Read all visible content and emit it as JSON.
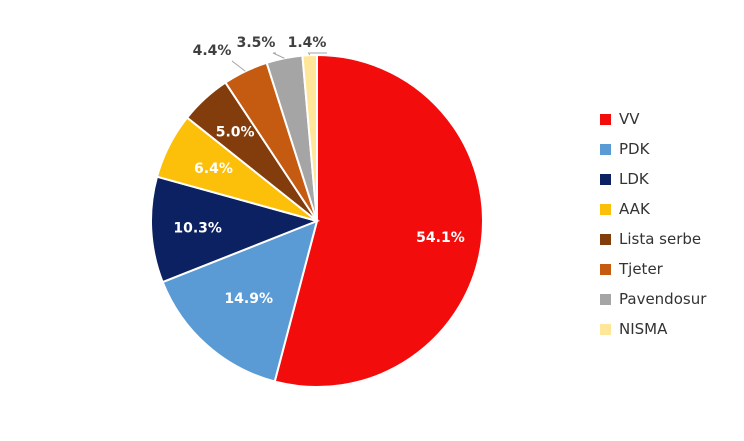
{
  "chart_data": {
    "type": "pie",
    "categories": [
      "VV",
      "PDK",
      "LDK",
      "AAK",
      "Lista serbe",
      "Tjeter",
      "Pavendosur",
      "NISMA"
    ],
    "values": [
      54.1,
      14.9,
      10.3,
      6.4,
      5.0,
      4.4,
      3.5,
      1.4
    ],
    "labels": [
      "54.1%",
      "14.9%",
      "10.3%",
      "6.4%",
      "5.0%",
      "4.4%",
      "3.5%",
      "1.4%"
    ],
    "colors": [
      "#f20c0c",
      "#5b9bd5",
      "#0b2161",
      "#fcc00b",
      "#833c0c",
      "#c55a11",
      "#a5a5a5",
      "#ffe699"
    ],
    "label_colors": [
      "#ffffff",
      "#ffffff",
      "#ffffff",
      "#ffffff",
      "#ffffff",
      "#404040",
      "#404040",
      "#404040"
    ],
    "legend_position": "right",
    "title": ""
  }
}
